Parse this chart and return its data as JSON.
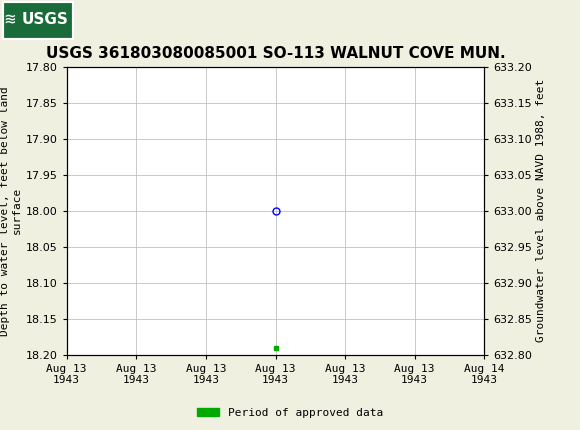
{
  "title": "USGS 361803080085001 SO-113 WALNUT COVE MUN.",
  "ylabel_left": "Depth to water level, feet below land\nsurface",
  "ylabel_right": "Groundwater level above NAVD 1988, feet",
  "ylim_left": [
    17.8,
    18.2
  ],
  "ylim_right": [
    632.8,
    633.2
  ],
  "yticks_left": [
    17.8,
    17.85,
    17.9,
    17.95,
    18.0,
    18.05,
    18.1,
    18.15,
    18.2
  ],
  "yticks_right": [
    632.8,
    632.85,
    632.9,
    632.95,
    633.0,
    633.05,
    633.1,
    633.15,
    633.2
  ],
  "x_tick_positions": [
    0,
    4,
    8,
    12,
    16,
    20,
    24
  ],
  "x_tick_labels": [
    "Aug 13\n1943",
    "Aug 13\n1943",
    "Aug 13\n1943",
    "Aug 13\n1943",
    "Aug 13\n1943",
    "Aug 13\n1943",
    "Aug 14\n1943"
  ],
  "xlim": [
    0,
    24
  ],
  "data_point_x": 12,
  "data_point_y": 18.0,
  "green_point_x": 12,
  "green_point_y": 18.19,
  "bg_color": "#f0f0e0",
  "plot_bg_color": "#ffffff",
  "header_color": "#1a6b3a",
  "grid_color": "#c0c0c0",
  "title_fontsize": 11,
  "axis_fontsize": 8,
  "tick_fontsize": 8,
  "legend_label": "Period of approved data",
  "legend_color": "#00aa00",
  "font_family": "monospace",
  "title_font_family": "sans-serif"
}
